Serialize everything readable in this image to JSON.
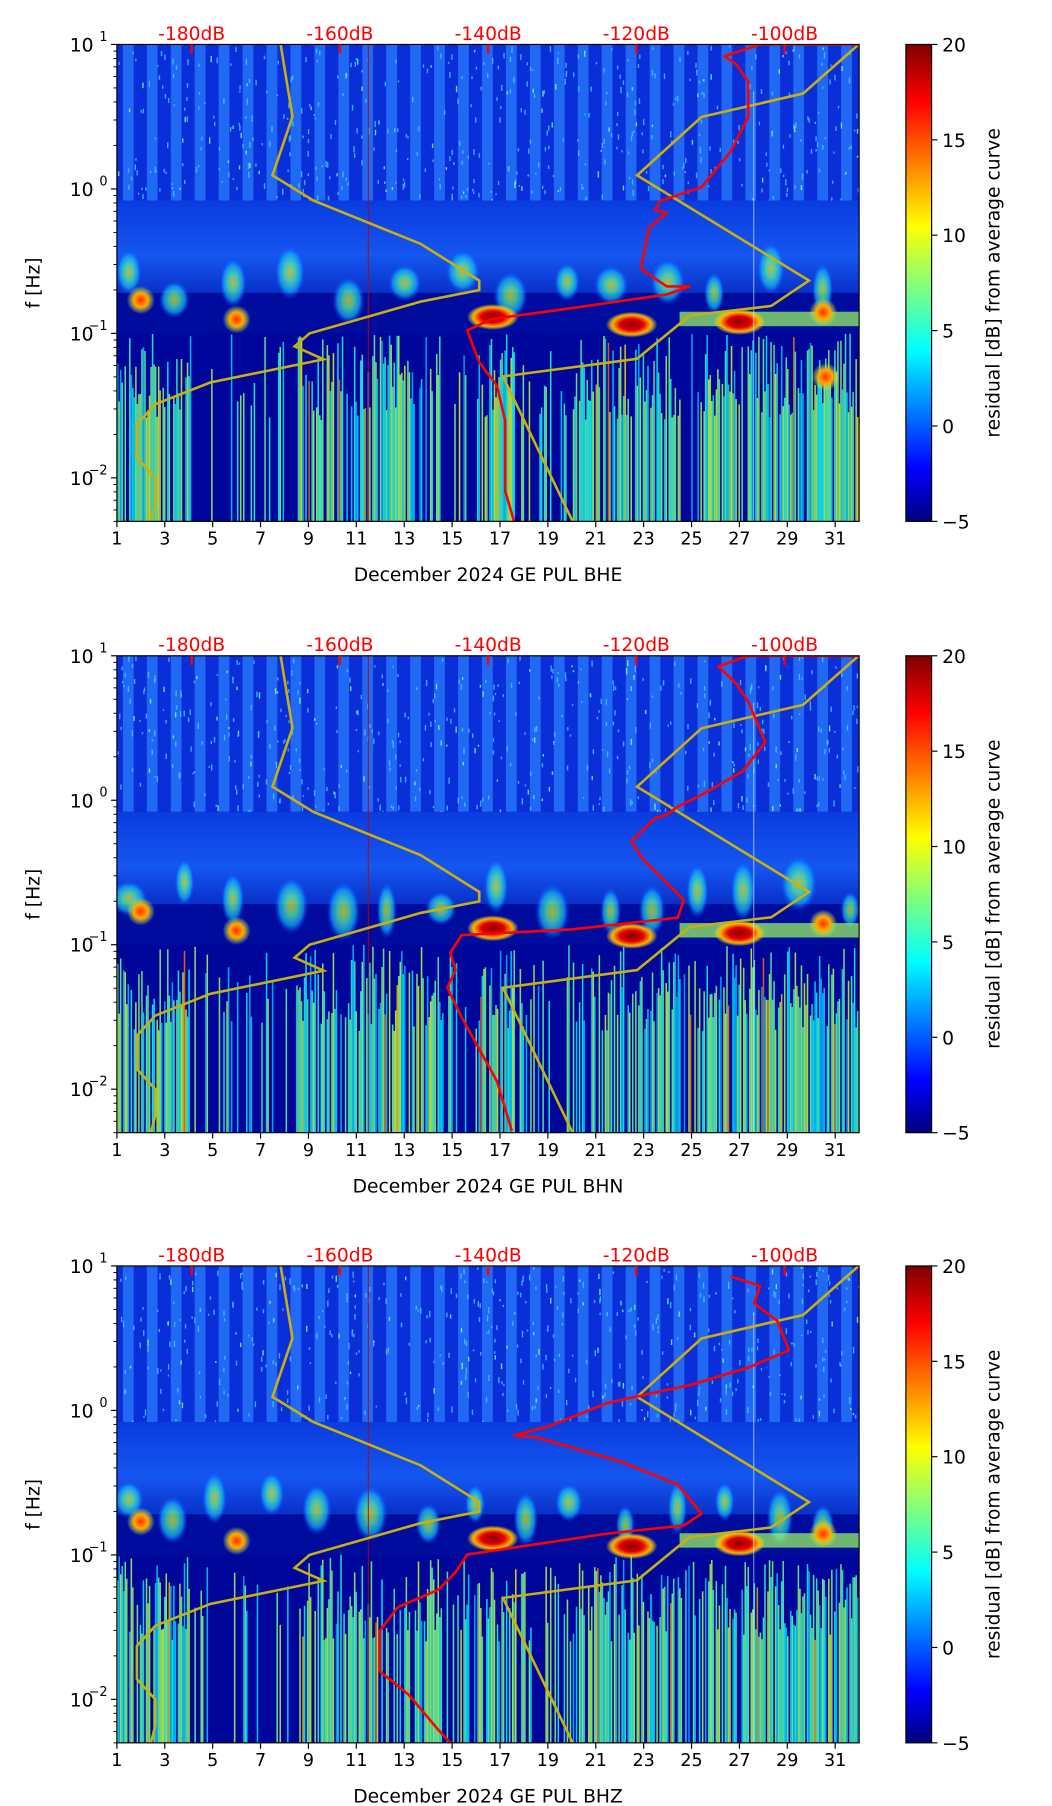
{
  "chart_data": {
    "type": "heatmap",
    "colorbar": {
      "label": "residual [dB] from average curve",
      "range": [
        -5,
        20
      ],
      "ticks": [
        "−5",
        "0",
        "5",
        "10",
        "15",
        "20"
      ],
      "tick_values": [
        -5,
        0,
        5,
        10,
        15,
        20
      ],
      "colormap": [
        "#00007f",
        "#0000ff",
        "#00ffff",
        "#ffff00",
        "#ff0000",
        "#7f0000"
      ]
    },
    "x_axis": {
      "range": [
        1,
        32
      ],
      "ticks": [
        1,
        3,
        5,
        7,
        9,
        11,
        13,
        15,
        17,
        19,
        21,
        23,
        25,
        27,
        29,
        31
      ],
      "tick_labels": [
        "1",
        "3",
        "5",
        "7",
        "9",
        "11",
        "13",
        "15",
        "17",
        "19",
        "21",
        "23",
        "25",
        "27",
        "29",
        "31"
      ]
    },
    "y_axis": {
      "label": "f [Hz]",
      "scale": "log",
      "range": [
        0.005,
        10
      ],
      "ticks": [
        {
          "base": "10",
          "exp": "1",
          "value": 10
        },
        {
          "base": "10",
          "exp": "0",
          "value": 1
        },
        {
          "base": "10",
          "exp": "−1",
          "value": 0.1
        },
        {
          "base": "10",
          "exp": "−2",
          "value": 0.01
        }
      ]
    },
    "top_axis": {
      "ticks": [
        {
          "label": "-180dB",
          "value": -180
        },
        {
          "label": "-160dB",
          "value": -160
        },
        {
          "label": "-140dB",
          "value": -140
        },
        {
          "label": "-120dB",
          "value": -120
        },
        {
          "label": "-100dB",
          "value": -100
        }
      ]
    },
    "reference_curves": {
      "low_noise_model_db_vs_logf": [
        [
          -168.0,
          1.0
        ],
        [
          -166.4,
          0.5
        ],
        [
          -169.1,
          0.094
        ],
        [
          -163.6,
          -0.08
        ],
        [
          -149.1,
          -0.38
        ],
        [
          -141.2,
          -0.634
        ],
        [
          -141.2,
          -0.7
        ],
        [
          -149.1,
          -0.78
        ],
        [
          -164.1,
          -1.0
        ],
        [
          -166.1,
          -1.09
        ],
        [
          -162.2,
          -1.18
        ],
        [
          -177.5,
          -1.34
        ],
        [
          -184.9,
          -1.49
        ],
        [
          -187.4,
          -1.63
        ],
        [
          -187.4,
          -1.86
        ],
        [
          -184.9,
          -2.0
        ],
        [
          -184.9,
          -2.18
        ],
        [
          -185.5,
          -2.301
        ]
      ],
      "high_noise_model_db_vs_logf": [
        [
          -90.0,
          1.0
        ],
        [
          -97.5,
          0.66
        ],
        [
          -111.2,
          0.498
        ],
        [
          -119.9,
          0.094
        ],
        [
          -96.7,
          -0.634
        ],
        [
          -101.8,
          -0.81
        ],
        [
          -112.8,
          -0.877
        ],
        [
          -119.9,
          -1.176
        ],
        [
          -138.0,
          -1.298
        ],
        [
          -128.6,
          -2.301
        ]
      ]
    },
    "panels": [
      {
        "xlabel": "December 2024 GE PUL  BHE",
        "mean_psd_db_vs_logf": [
          [
            -90,
            1
          ],
          [
            -103.3,
            1
          ],
          [
            -108.1,
            0.919
          ],
          [
            -106.5,
            0.862
          ],
          [
            -104.9,
            0.741
          ],
          [
            -104.9,
            0.498
          ],
          [
            -107.3,
            0.256
          ],
          [
            -111.2,
            0.013
          ],
          [
            -116.8,
            -0.084
          ],
          [
            -117.5,
            -0.15
          ],
          [
            -115.9,
            -0.165
          ],
          [
            -118.3,
            -0.27
          ],
          [
            -119.4,
            -0.553
          ],
          [
            -115.9,
            -0.675
          ],
          [
            -112.8,
            -0.675
          ],
          [
            -115.9,
            -0.731
          ],
          [
            -130.2,
            -0.836
          ],
          [
            -139.6,
            -0.901
          ],
          [
            -142.8,
            -0.981
          ],
          [
            -141.2,
            -1.2
          ],
          [
            -138.8,
            -1.362
          ],
          [
            -137.7,
            -1.605
          ],
          [
            -137.7,
            -2.091
          ],
          [
            -136.5,
            -2.301
          ]
        ],
        "hotspots": [
          {
            "day": 16.7,
            "f": 0.13,
            "residual": 20
          },
          {
            "day": 22.5,
            "f": 0.115,
            "residual": 20
          },
          {
            "day": 27,
            "f": 0.12,
            "residual": 19
          },
          {
            "day": 30.5,
            "f": 0.14,
            "residual": 15
          },
          {
            "day": 30.6,
            "f": 0.05,
            "residual": 14
          },
          {
            "day": 2,
            "f": 0.17,
            "residual": 14
          },
          {
            "day": 6,
            "f": 0.125,
            "residual": 14
          }
        ]
      },
      {
        "xlabel": "December 2024 GE PUL  BHN",
        "mean_psd_db_vs_logf": [
          [
            -90,
            1
          ],
          [
            -104.9,
            1
          ],
          [
            -108.9,
            0.927
          ],
          [
            -106.5,
            0.806
          ],
          [
            -104.9,
            0.684
          ],
          [
            -102.6,
            0.401
          ],
          [
            -105.7,
            0.199
          ],
          [
            -111.2,
            0.037
          ],
          [
            -114.4,
            -0.044
          ],
          [
            -115.9,
            -0.1
          ],
          [
            -117.5,
            -0.125
          ],
          [
            -120.7,
            -0.286
          ],
          [
            -119.1,
            -0.408
          ],
          [
            -113.6,
            -0.691
          ],
          [
            -114.4,
            -0.812
          ],
          [
            -128.6,
            -0.893
          ],
          [
            -143.6,
            -0.934
          ],
          [
            -145.1,
            -1.055
          ],
          [
            -144.4,
            -1.176
          ],
          [
            -145.5,
            -1.298
          ],
          [
            -143.6,
            -1.5
          ],
          [
            -138.8,
            -1.945
          ],
          [
            -136.8,
            -2.29
          ]
        ],
        "hotspots": [
          {
            "day": 16.7,
            "f": 0.13,
            "residual": 20
          },
          {
            "day": 22.5,
            "f": 0.115,
            "residual": 20
          },
          {
            "day": 27,
            "f": 0.12,
            "residual": 19
          },
          {
            "day": 30.5,
            "f": 0.14,
            "residual": 16
          },
          {
            "day": 2,
            "f": 0.17,
            "residual": 14
          },
          {
            "day": 6,
            "f": 0.125,
            "residual": 12
          }
        ]
      },
      {
        "xlabel": "December 2024 GE PUL  BHZ",
        "mean_psd_db_vs_logf": [
          [
            -107.3,
            0.927
          ],
          [
            -103.3,
            0.862
          ],
          [
            -104.1,
            0.741
          ],
          [
            -101.0,
            0.62
          ],
          [
            -99.4,
            0.417
          ],
          [
            -104.9,
            0.296
          ],
          [
            -112.8,
            0.175
          ],
          [
            -123.8,
            0.053
          ],
          [
            -131.7,
            -0.108
          ],
          [
            -136.5,
            -0.173
          ],
          [
            -133.3,
            -0.189
          ],
          [
            -122.3,
            -0.351
          ],
          [
            -114.4,
            -0.513
          ],
          [
            -111.2,
            -0.715
          ],
          [
            -113.6,
            -0.796
          ],
          [
            -123.8,
            -0.852
          ],
          [
            -142.8,
            -0.998
          ],
          [
            -144.4,
            -1.12
          ],
          [
            -146.7,
            -1.241
          ],
          [
            -152.2,
            -1.362
          ],
          [
            -154.6,
            -1.524
          ],
          [
            -154.6,
            -1.807
          ],
          [
            -150.7,
            -1.969
          ],
          [
            -146.7,
            -2.212
          ],
          [
            -145.1,
            -2.301
          ]
        ],
        "hotspots": [
          {
            "day": 16.7,
            "f": 0.13,
            "residual": 20
          },
          {
            "day": 22.5,
            "f": 0.115,
            "residual": 20
          },
          {
            "day": 27,
            "f": 0.12,
            "residual": 19
          },
          {
            "day": 30.5,
            "f": 0.14,
            "residual": 15
          },
          {
            "day": 2,
            "f": 0.17,
            "residual": 14
          },
          {
            "day": 6,
            "f": 0.125,
            "residual": 13
          }
        ]
      }
    ]
  }
}
